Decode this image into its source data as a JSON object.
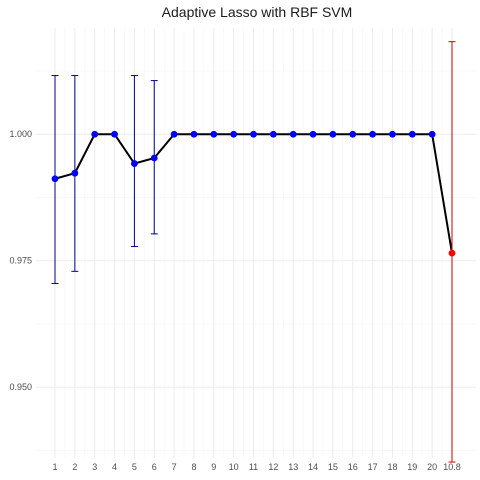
{
  "chart_data": {
    "type": "line",
    "title": "Adaptive Lasso with RBF SVM",
    "xlabel": "",
    "ylabel": "",
    "categories": [
      "1",
      "2",
      "3",
      "4",
      "5",
      "6",
      "7",
      "8",
      "9",
      "10",
      "11",
      "12",
      "13",
      "14",
      "15",
      "16",
      "17",
      "18",
      "19",
      "20",
      "10.8"
    ],
    "ylim": [
      0.936,
      1.021
    ],
    "y_ticks": [
      "0.950",
      "0.975",
      "1.000"
    ],
    "y_tick_values": [
      0.95,
      0.975,
      1.0
    ],
    "grid": true,
    "legend": "none",
    "series": [
      {
        "values": [
          0.9912,
          0.9923,
          1.0,
          1.0,
          0.9942,
          0.9953,
          1.0,
          1.0,
          1.0,
          1.0,
          1.0,
          1.0,
          1.0,
          1.0,
          1.0,
          1.0,
          1.0,
          1.0,
          1.0,
          1.0,
          0.9765
        ],
        "error_lower": [
          0.9705,
          0.9729,
          null,
          null,
          0.9778,
          0.9803,
          null,
          null,
          null,
          null,
          null,
          null,
          null,
          null,
          null,
          null,
          null,
          null,
          null,
          null,
          0.9352
        ],
        "error_upper": [
          1.0116,
          1.0116,
          null,
          null,
          1.0116,
          1.0106,
          null,
          null,
          null,
          null,
          null,
          null,
          null,
          null,
          null,
          null,
          null,
          null,
          null,
          null,
          1.0183
        ],
        "point_colors": [
          "#0000ff",
          "#0000ff",
          "#0000ff",
          "#0000ff",
          "#0000ff",
          "#0000ff",
          "#0000ff",
          "#0000ff",
          "#0000ff",
          "#0000ff",
          "#0000ff",
          "#0000ff",
          "#0000ff",
          "#0000ff",
          "#0000ff",
          "#0000ff",
          "#0000ff",
          "#0000ff",
          "#0000ff",
          "#0000ff",
          "#ff0000"
        ],
        "errorbar_colors": [
          "#00008b",
          "#00008b",
          null,
          null,
          "#00008b",
          "#00008b",
          null,
          null,
          null,
          null,
          null,
          null,
          null,
          null,
          null,
          null,
          null,
          null,
          null,
          null,
          "#cc0000"
        ]
      }
    ],
    "colors": {
      "line": "#000000",
      "grid_major": "#ebebeb",
      "grid_minor": "#f5f5f5",
      "background": "#ffffff"
    }
  }
}
